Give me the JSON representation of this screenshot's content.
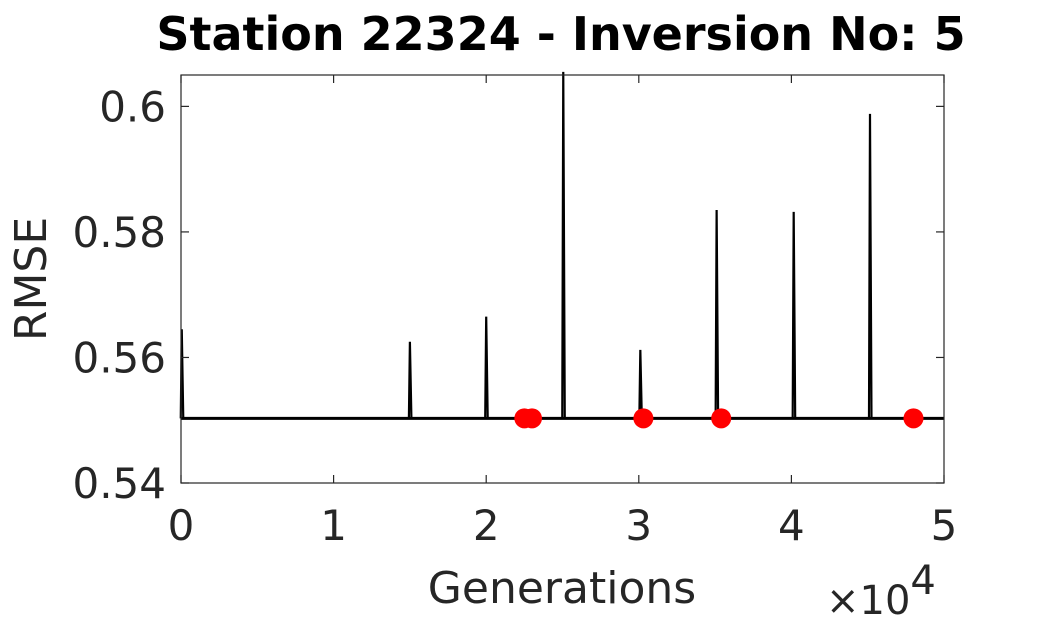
{
  "chart_data": {
    "type": "line",
    "title": "Station 22324 - Inversion No: 5",
    "xlabel": "Generations",
    "ylabel": "RMSE",
    "x_exponent_label": "×10",
    "x_exponent_power": "4",
    "xlim": [
      0,
      50000
    ],
    "ylim": [
      0.54,
      0.605
    ],
    "x_ticks": [
      0,
      10000,
      20000,
      30000,
      40000,
      50000
    ],
    "x_tick_labels": [
      "0",
      "1",
      "2",
      "3",
      "4",
      "5"
    ],
    "y_ticks": [
      0.54,
      0.56,
      0.58,
      0.6
    ],
    "y_tick_labels": [
      "0.54",
      "0.56",
      "0.58",
      "0.6"
    ],
    "grid": false,
    "baseline": 0.5503,
    "series": [
      {
        "style": "line",
        "color": "#000000",
        "spikes": [
          {
            "x": 50,
            "y": 0.5645
          },
          {
            "x": 15000,
            "y": 0.5625
          },
          {
            "x": 20000,
            "y": 0.5665
          },
          {
            "x": 25050,
            "y": 0.6055
          },
          {
            "x": 30100,
            "y": 0.5612
          },
          {
            "x": 35100,
            "y": 0.5835
          },
          {
            "x": 40150,
            "y": 0.5832
          },
          {
            "x": 45150,
            "y": 0.5988
          }
        ]
      },
      {
        "style": "markers",
        "color": "#ff0000",
        "points": [
          {
            "x": 22500,
            "y": 0.5503
          },
          {
            "x": 23000,
            "y": 0.5503
          },
          {
            "x": 30300,
            "y": 0.5503
          },
          {
            "x": 35400,
            "y": 0.5503
          },
          {
            "x": 48000,
            "y": 0.5503
          }
        ]
      }
    ]
  }
}
